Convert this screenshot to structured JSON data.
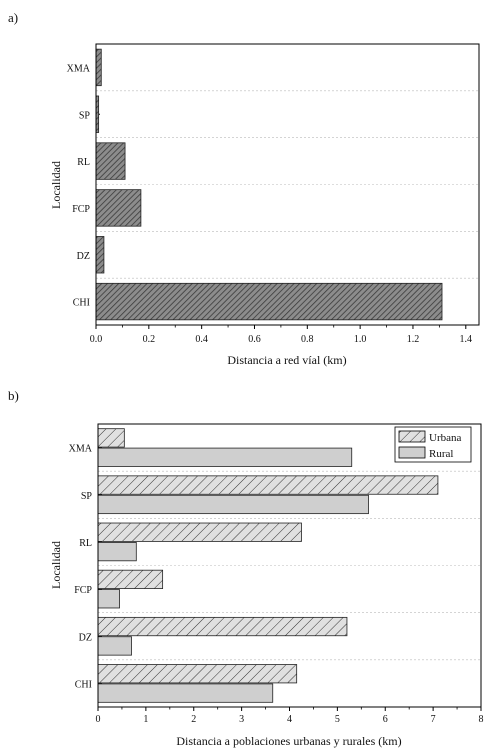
{
  "panels": [
    {
      "panel_label": "a)",
      "ylabel": "Localidad",
      "xlabel": "Distancia a red víal (km)",
      "categories": [
        "XMA",
        "SP",
        "RL",
        "FCP",
        "DZ",
        "CHI"
      ],
      "xticks": [
        "0.0",
        "0.2",
        "0.4",
        "0.6",
        "0.8",
        "1.0",
        "1.2",
        "1.4"
      ],
      "colors": {
        "fill": "#8c8c8c",
        "hatch": "#3a3a3a"
      }
    },
    {
      "panel_label": "b)",
      "ylabel": "Localidad",
      "xlabel": "Distancia a poblaciones urbanas y rurales (km)",
      "categories": [
        "XMA",
        "SP",
        "RL",
        "FCP",
        "DZ",
        "CHI"
      ],
      "xticks": [
        "0",
        "1",
        "2",
        "3",
        "4",
        "5",
        "6",
        "7",
        "8"
      ],
      "legend": [
        "Urbana",
        "Rural"
      ],
      "colors": {
        "urbana_fill": "#e0e0e0",
        "rural_fill": "#cfcfcf"
      }
    }
  ],
  "chart_data": [
    {
      "type": "bar",
      "orientation": "horizontal",
      "xlabel": "Distancia a red víal (km)",
      "ylabel": "Localidad",
      "categories": [
        "XMA",
        "SP",
        "RL",
        "FCP",
        "DZ",
        "CHI"
      ],
      "values": [
        0.02,
        0.01,
        0.11,
        0.17,
        0.03,
        1.31
      ],
      "xlim": [
        0,
        1.45
      ],
      "grid": false,
      "legend": "none"
    },
    {
      "type": "bar",
      "orientation": "horizontal",
      "xlabel": "Distancia a poblaciones urbanas y rurales (km)",
      "ylabel": "Localidad",
      "categories": [
        "XMA",
        "SP",
        "RL",
        "FCP",
        "DZ",
        "CHI"
      ],
      "series": [
        {
          "name": "Urbana",
          "values": [
            0.55,
            7.1,
            4.25,
            1.35,
            5.2,
            4.15
          ]
        },
        {
          "name": "Rural",
          "values": [
            5.3,
            5.65,
            0.8,
            0.45,
            0.7,
            3.65
          ]
        }
      ],
      "xlim": [
        0,
        8
      ],
      "grid": false,
      "legend": "top-right"
    }
  ]
}
